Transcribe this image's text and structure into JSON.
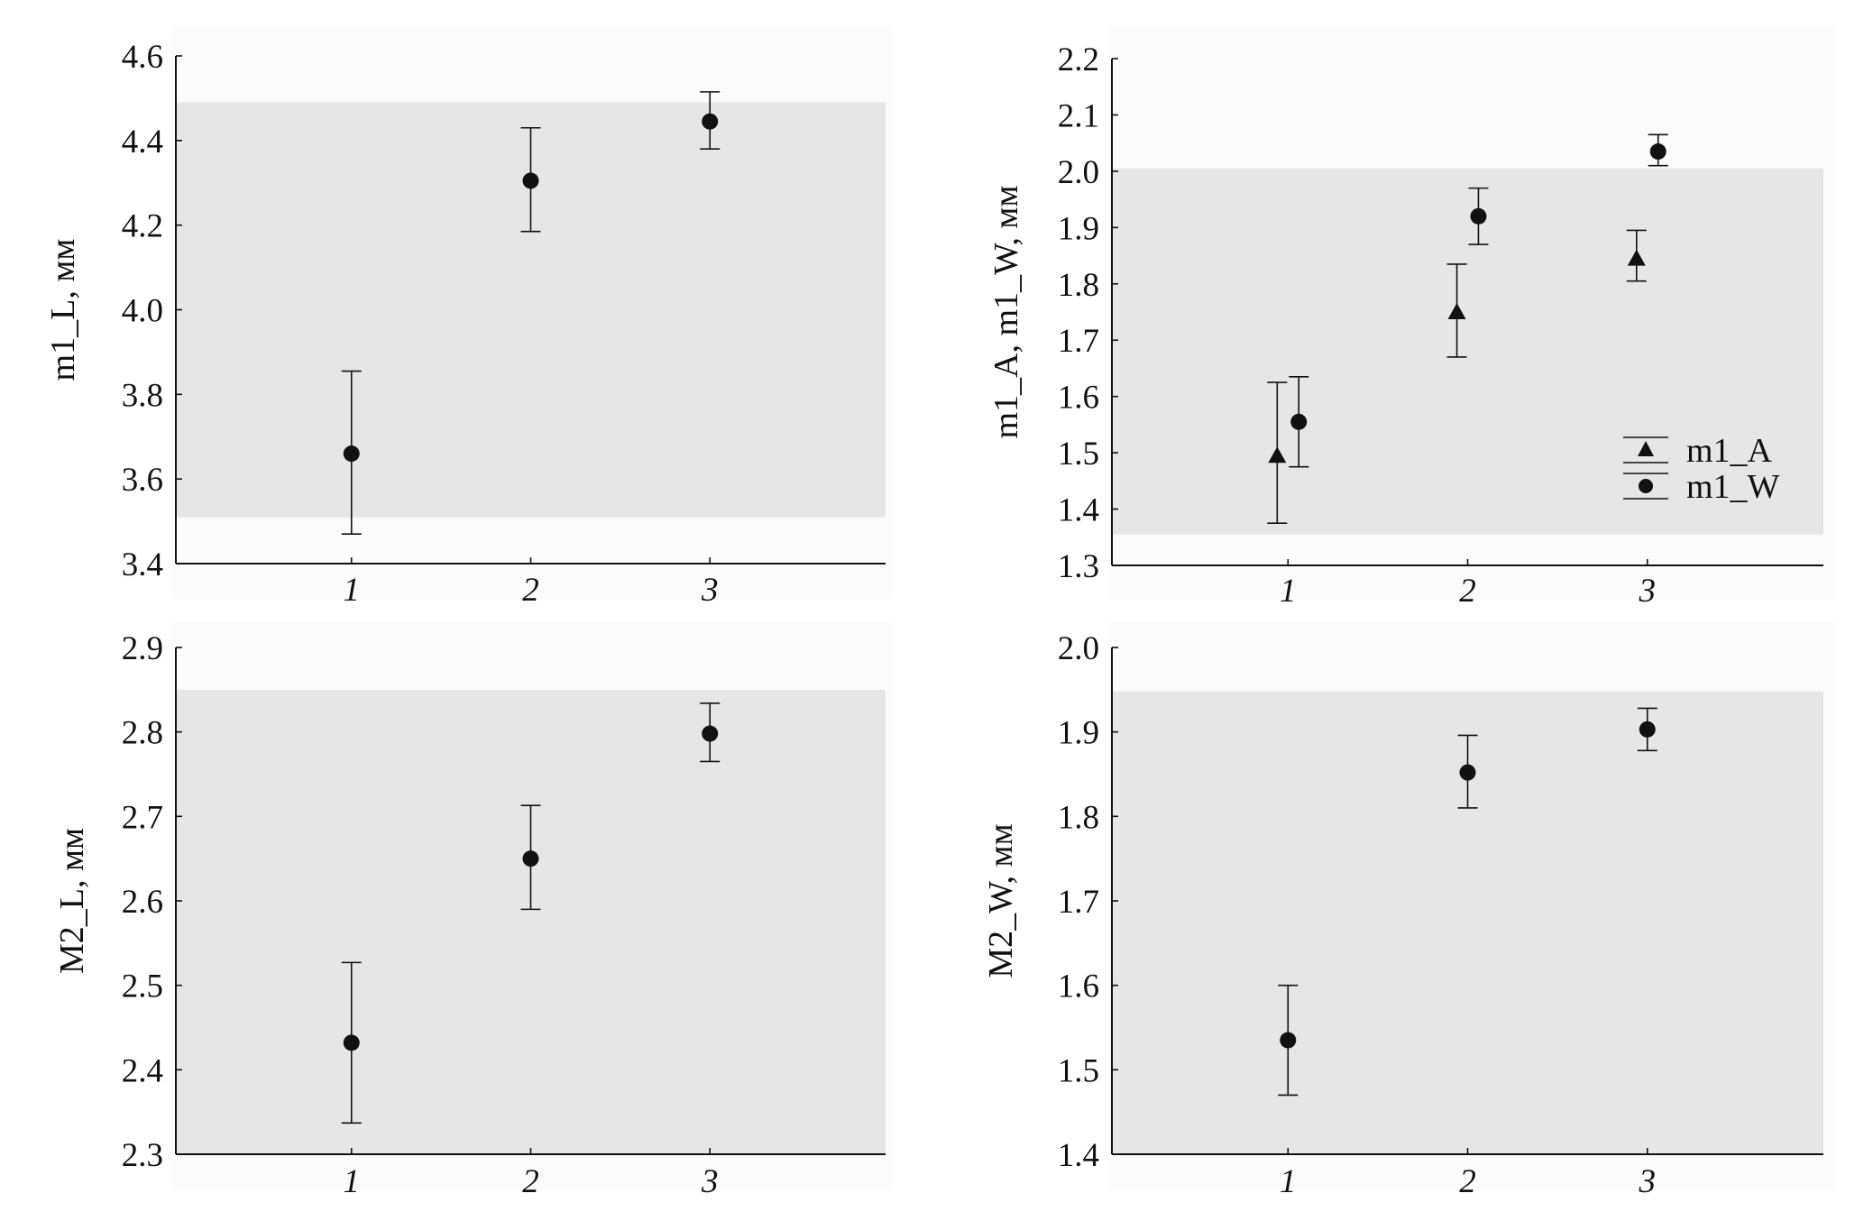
{
  "chart_data": [
    {
      "type": "scatter",
      "panel": "top-left",
      "ylabel": "m1_L, мм",
      "categories": [
        "1",
        "2",
        "3"
      ],
      "ylim": [
        3.4,
        4.6
      ],
      "yticks": [
        "3.4",
        "3.6",
        "3.8",
        "4.0",
        "4.2",
        "4.4",
        "4.6"
      ],
      "band": [
        3.51,
        4.49
      ],
      "grid": false,
      "series": [
        {
          "marker": "circle",
          "x": [
            1,
            2,
            3
          ],
          "values": [
            3.66,
            4.305,
            4.445
          ],
          "lower": [
            3.47,
            4.185,
            4.38
          ],
          "upper": [
            3.855,
            4.43,
            4.515
          ]
        }
      ]
    },
    {
      "type": "scatter",
      "panel": "top-right",
      "ylabel": "m1_A, m1_W, мм",
      "categories": [
        "1",
        "2",
        "3"
      ],
      "ylim": [
        1.3,
        2.2
      ],
      "yticks": [
        "1.3",
        "1.4",
        "1.5",
        "1.6",
        "1.7",
        "1.8",
        "1.9",
        "2.0",
        "2.1",
        "2.2"
      ],
      "band": [
        1.355,
        2.005
      ],
      "grid": false,
      "legend": "bottom-right",
      "series": [
        {
          "name": "m1_A",
          "marker": "triangle",
          "x": [
            0.94,
            1.94,
            2.94
          ],
          "values": [
            1.495,
            1.75,
            1.845
          ],
          "lower": [
            1.375,
            1.67,
            1.805
          ],
          "upper": [
            1.625,
            1.835,
            1.895
          ]
        },
        {
          "name": "m1_W",
          "marker": "circle",
          "x": [
            1.06,
            2.06,
            3.06
          ],
          "values": [
            1.555,
            1.92,
            2.035
          ],
          "lower": [
            1.475,
            1.87,
            2.01
          ],
          "upper": [
            1.635,
            1.97,
            2.065
          ]
        }
      ]
    },
    {
      "type": "scatter",
      "panel": "bottom-left",
      "ylabel": "M2_L, мм",
      "categories": [
        "1",
        "2",
        "3"
      ],
      "ylim": [
        2.3,
        2.9
      ],
      "yticks": [
        "2.3",
        "2.4",
        "2.5",
        "2.6",
        "2.7",
        "2.8",
        "2.9"
      ],
      "band": [
        2.3,
        2.85
      ],
      "grid": false,
      "series": [
        {
          "marker": "circle",
          "x": [
            1,
            2,
            3
          ],
          "values": [
            2.432,
            2.65,
            2.798
          ],
          "lower": [
            2.337,
            2.59,
            2.765
          ],
          "upper": [
            2.527,
            2.713,
            2.834
          ]
        }
      ]
    },
    {
      "type": "scatter",
      "panel": "bottom-right",
      "ylabel": "M2_W, мм",
      "categories": [
        "1",
        "2",
        "3"
      ],
      "ylim": [
        1.4,
        2.0
      ],
      "yticks": [
        "1.4",
        "1.5",
        "1.6",
        "1.7",
        "1.8",
        "1.9",
        "2.0"
      ],
      "band": [
        1.4,
        1.948
      ],
      "grid": false,
      "series": [
        {
          "marker": "circle",
          "x": [
            1,
            2,
            3
          ],
          "values": [
            1.535,
            1.852,
            1.903
          ],
          "lower": [
            1.47,
            1.81,
            1.878
          ],
          "upper": [
            1.6,
            1.896,
            1.928
          ]
        }
      ]
    }
  ]
}
